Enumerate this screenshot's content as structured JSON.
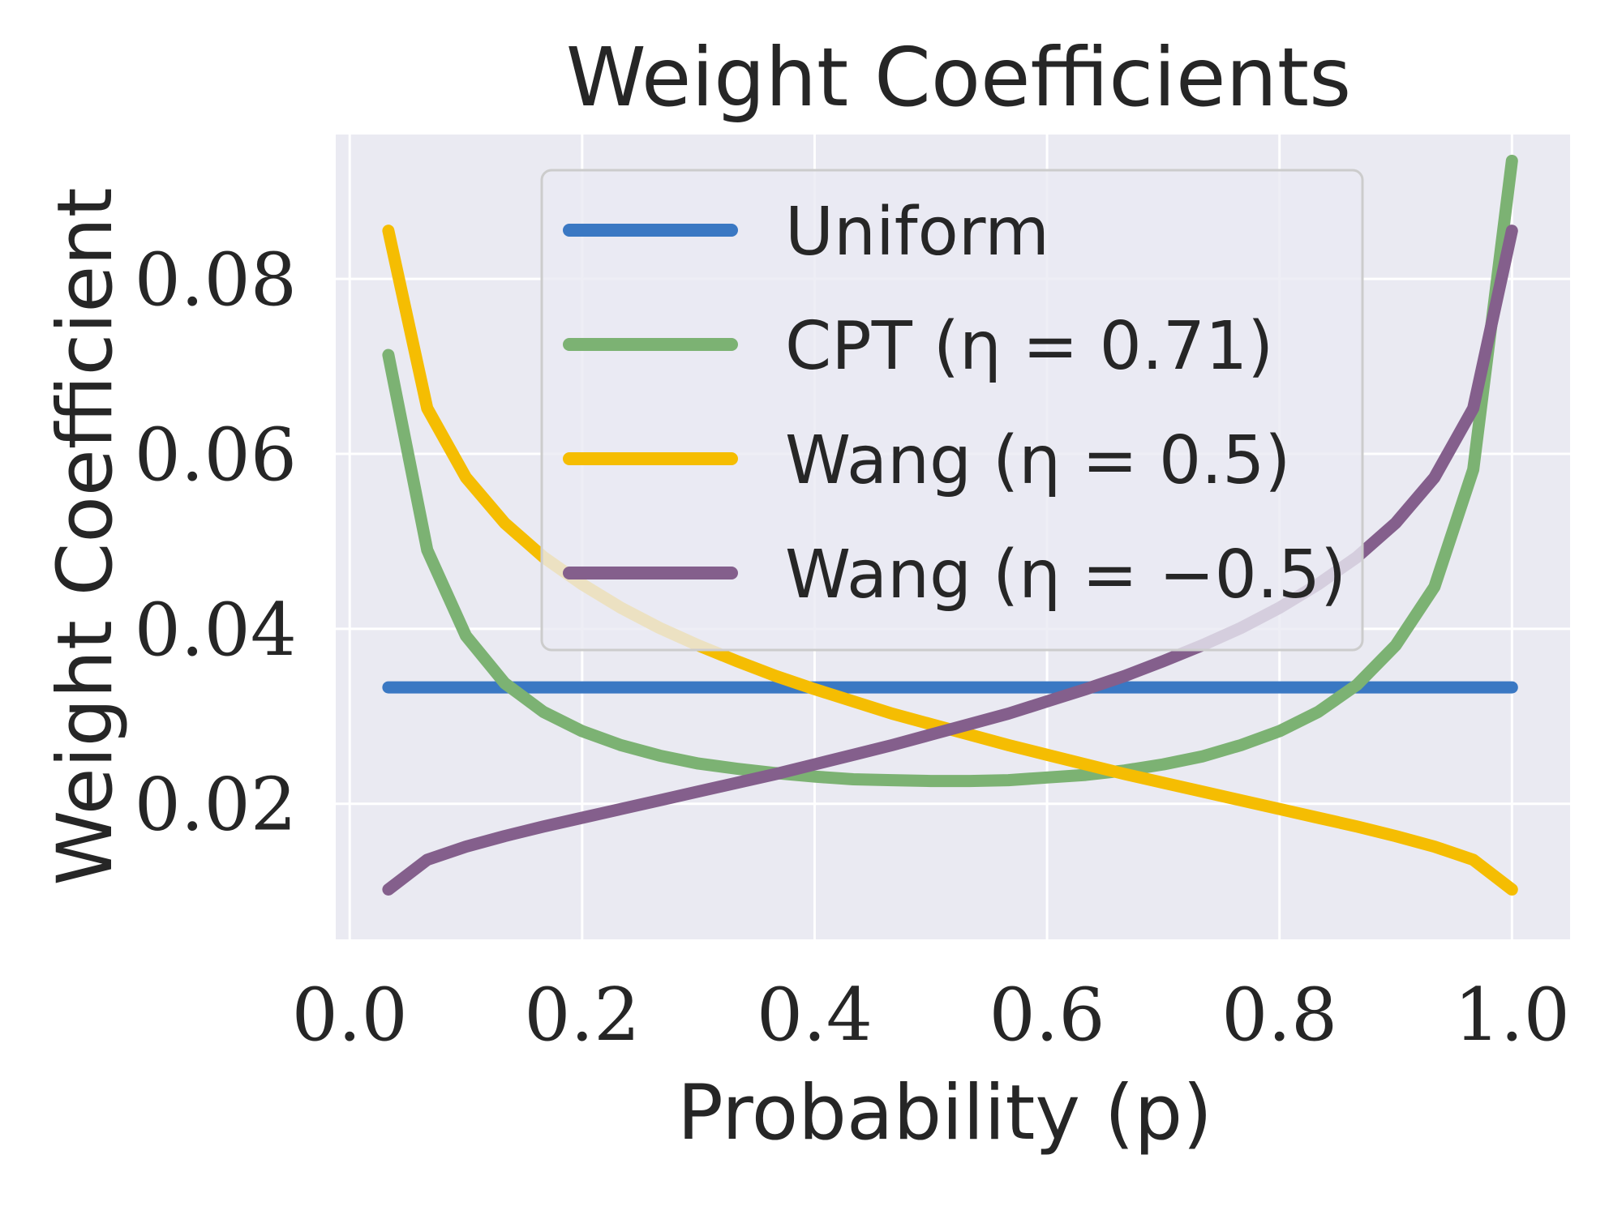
{
  "chart_data": {
    "type": "line",
    "title": "Weight Coefficients",
    "xlabel": "Probability (p)",
    "ylabel": "Weight Coefficient",
    "xlim": [
      -0.012,
      1.05
    ],
    "ylim": [
      0.0045,
      0.0965
    ],
    "xticks": [
      0.0,
      0.2,
      0.4,
      0.6,
      0.8,
      1.0
    ],
    "xtick_labels": [
      "0.0",
      "0.2",
      "0.4",
      "0.6",
      "0.8",
      "1.0"
    ],
    "yticks": [
      0.02,
      0.04,
      0.06,
      0.08
    ],
    "ytick_labels": [
      "0.02",
      "0.04",
      "0.06",
      "0.08"
    ],
    "grid": true,
    "legend_position": "upper-center",
    "x": [
      0.0333,
      0.0667,
      0.1,
      0.1333,
      0.1667,
      0.2,
      0.2333,
      0.2667,
      0.3,
      0.3333,
      0.3667,
      0.4,
      0.4333,
      0.4667,
      0.5,
      0.5333,
      0.5667,
      0.6,
      0.6333,
      0.6667,
      0.7,
      0.7333,
      0.7667,
      0.8,
      0.8333,
      0.8667,
      0.9,
      0.9333,
      0.9667,
      1.0
    ],
    "series": [
      {
        "name": "Uniform",
        "color": "#3a78c3",
        "values": [
          0.0333,
          0.0333,
          0.0333,
          0.0333,
          0.0333,
          0.0333,
          0.0333,
          0.0333,
          0.0333,
          0.0333,
          0.0333,
          0.0333,
          0.0333,
          0.0333,
          0.0333,
          0.0333,
          0.0333,
          0.0333,
          0.0333,
          0.0333,
          0.0333,
          0.0333,
          0.0333,
          0.0333,
          0.0333,
          0.0333,
          0.0333,
          0.0333,
          0.0333,
          0.0333
        ]
      },
      {
        "name": "CPT (η = 0.71)",
        "color": "#7cb273",
        "values": [
          0.0713,
          0.049,
          0.0392,
          0.0338,
          0.0305,
          0.0283,
          0.0267,
          0.0255,
          0.0246,
          0.024,
          0.0235,
          0.0231,
          0.0228,
          0.0227,
          0.0226,
          0.0226,
          0.0227,
          0.023,
          0.0233,
          0.0238,
          0.0245,
          0.0254,
          0.0267,
          0.0283,
          0.0305,
          0.0336,
          0.0381,
          0.0448,
          0.0582,
          0.0935
        ]
      },
      {
        "name": "Wang (η = 0.5)",
        "color": "#f5bd02",
        "values": [
          0.0855,
          0.0652,
          0.0573,
          0.0521,
          0.0482,
          0.0451,
          0.0424,
          0.0401,
          0.0381,
          0.0363,
          0.0346,
          0.0331,
          0.0317,
          0.0303,
          0.0291,
          0.0279,
          0.0267,
          0.0256,
          0.0245,
          0.0234,
          0.0224,
          0.0214,
          0.0204,
          0.0194,
          0.0184,
          0.0174,
          0.0163,
          0.0151,
          0.0136,
          0.0102
        ]
      },
      {
        "name": "Wang (η = −0.5)",
        "color": "#845f8c",
        "values": [
          0.0102,
          0.0136,
          0.0151,
          0.0163,
          0.0174,
          0.0184,
          0.0194,
          0.0204,
          0.0214,
          0.0224,
          0.0234,
          0.0245,
          0.0256,
          0.0267,
          0.0279,
          0.0291,
          0.0303,
          0.0317,
          0.0331,
          0.0346,
          0.0363,
          0.0381,
          0.0401,
          0.0424,
          0.0451,
          0.0482,
          0.0521,
          0.0573,
          0.0652,
          0.0855
        ]
      }
    ]
  }
}
